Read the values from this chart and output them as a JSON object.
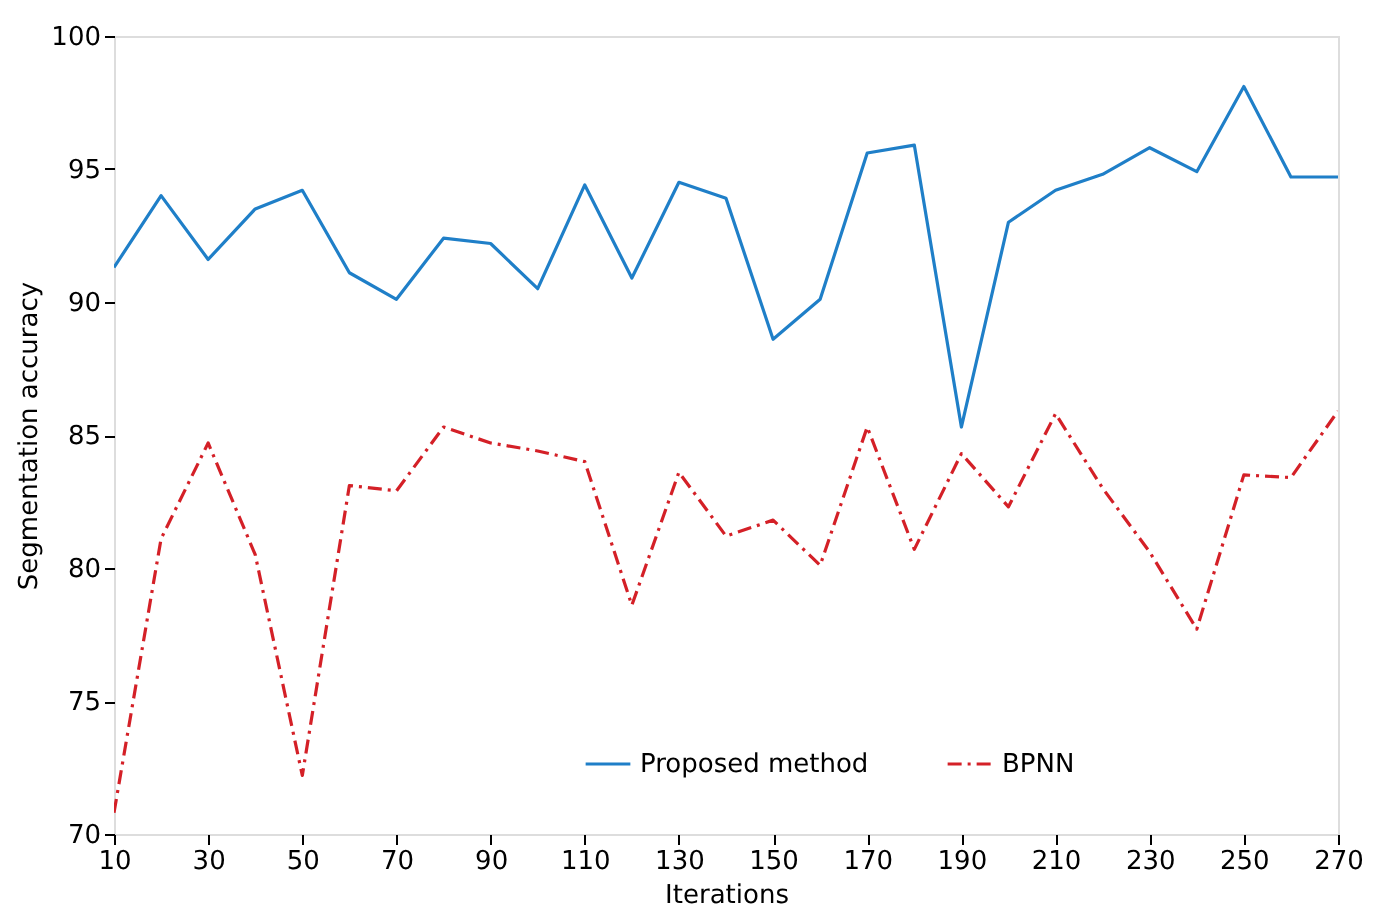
{
  "chart_data": {
    "type": "line",
    "xlabel": "Iterations",
    "ylabel": "Segmentation accuracy",
    "x": [
      10,
      20,
      30,
      40,
      50,
      60,
      70,
      80,
      90,
      100,
      110,
      120,
      130,
      140,
      150,
      160,
      170,
      180,
      190,
      200,
      210,
      220,
      230,
      240,
      250,
      260,
      270
    ],
    "xlim": [
      10,
      270
    ],
    "xticks": [
      10,
      30,
      50,
      70,
      90,
      110,
      130,
      150,
      170,
      190,
      210,
      230,
      250,
      270
    ],
    "ylim": [
      70,
      100
    ],
    "yticks": [
      70,
      75,
      80,
      85,
      90,
      95,
      100
    ],
    "grid": false,
    "legend": "bottom",
    "marker": "none",
    "series": [
      {
        "name": "Proposed method",
        "color": "#1f7fc8",
        "line_style": "solid",
        "values": [
          91.3,
          94.0,
          91.6,
          93.5,
          94.2,
          91.1,
          90.1,
          92.4,
          92.2,
          90.5,
          94.4,
          90.9,
          94.5,
          93.9,
          88.6,
          90.1,
          95.6,
          95.9,
          85.3,
          93.0,
          94.2,
          94.8,
          95.8,
          94.9,
          98.1,
          94.7,
          94.7
        ]
      },
      {
        "name": "BPNN",
        "color": "#d42027",
        "line_style": "dashed",
        "values": [
          70.8,
          81.1,
          84.7,
          80.5,
          72.2,
          83.1,
          82.9,
          85.3,
          84.7,
          84.4,
          84.0,
          78.6,
          83.6,
          81.2,
          81.8,
          80.1,
          85.3,
          80.7,
          84.3,
          82.3,
          85.8,
          83.0,
          80.6,
          77.7,
          83.5,
          83.4,
          85.9
        ]
      }
    ]
  }
}
